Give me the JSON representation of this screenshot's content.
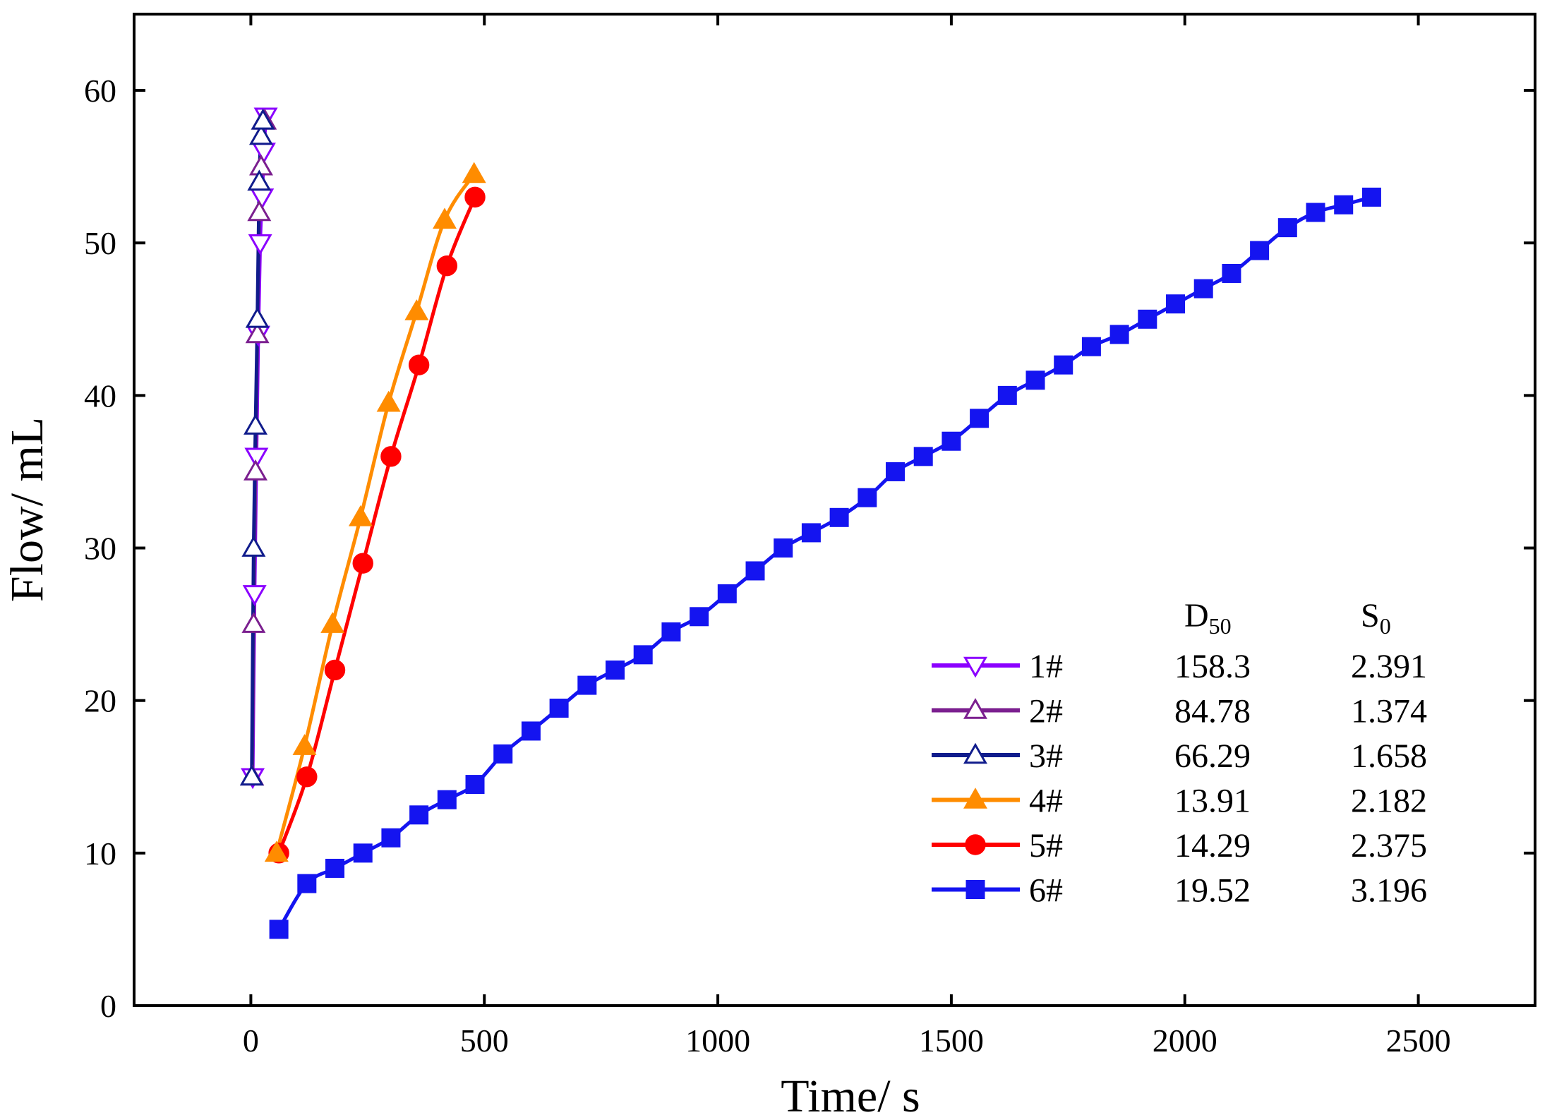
{
  "chart_data": {
    "type": "line",
    "title": "",
    "xlabel": "Time/ s",
    "ylabel": "Flow/ mL",
    "xlim": [
      -250,
      2750
    ],
    "ylim": [
      0,
      65
    ],
    "xticks": [
      0,
      500,
      1000,
      1500,
      2000,
      2500
    ],
    "yticks": [
      0,
      10,
      20,
      30,
      40,
      50,
      60
    ],
    "xtick_labels": [
      "0",
      "500",
      "1000",
      "1500",
      "2000",
      "2500"
    ],
    "ytick_labels": [
      "0",
      "10",
      "20",
      "30",
      "40",
      "50",
      "60"
    ],
    "grid": false,
    "legend": {
      "position": "bottom-right",
      "header": {
        "d50_main": "D",
        "d50_sub": "50",
        "s0_main": "S",
        "s0_sub": "0"
      }
    },
    "series": [
      {
        "name": "1#",
        "d50": "158.3",
        "s0": "2.391",
        "color": "#8B00FF",
        "marker": "triangle-down",
        "filled": false,
        "x": [
          4,
          8,
          12,
          16,
          20,
          24,
          28,
          32
        ],
        "y": [
          15,
          27,
          36,
          44,
          50,
          53,
          56,
          58.3
        ]
      },
      {
        "name": "2#",
        "d50": "84.78",
        "s0": "1.374",
        "color": "#7B1F8F",
        "marker": "triangle-up",
        "filled": false,
        "x": [
          3,
          6,
          10,
          14,
          18,
          22,
          26,
          30
        ],
        "y": [
          15,
          25,
          35,
          44,
          52,
          55,
          58,
          58
        ]
      },
      {
        "name": "3#",
        "d50": "66.29",
        "s0": "1.658",
        "color": "#101C8C",
        "marker": "triangle-up",
        "filled": false,
        "x": [
          2,
          6,
          10,
          14,
          18,
          22,
          26
        ],
        "y": [
          15,
          30,
          38,
          45,
          54,
          57,
          58
        ]
      },
      {
        "name": "4#",
        "d50": "13.91",
        "s0": "2.182",
        "color": "#FF8C00",
        "marker": "triangle-up",
        "filled": true,
        "x": [
          55,
          115,
          175,
          235,
          295,
          355,
          415,
          478
        ],
        "y": [
          10,
          17,
          25,
          32,
          39.5,
          45.5,
          51.5,
          54.5
        ]
      },
      {
        "name": "5#",
        "d50": "14.29",
        "s0": "2.375",
        "color": "#FF0000",
        "marker": "circle",
        "filled": true,
        "x": [
          60,
          120,
          180,
          240,
          300,
          360,
          420,
          480
        ],
        "y": [
          10,
          15,
          22,
          29,
          36,
          42,
          48.5,
          53
        ]
      },
      {
        "name": "6#",
        "d50": "19.52",
        "s0": "3.196",
        "color": "#1414F0",
        "marker": "square",
        "filled": true,
        "x": [
          60,
          120,
          180,
          240,
          300,
          360,
          420,
          480,
          540,
          600,
          660,
          720,
          780,
          840,
          900,
          960,
          1020,
          1080,
          1140,
          1200,
          1260,
          1320,
          1380,
          1440,
          1500,
          1560,
          1620,
          1680,
          1740,
          1800,
          1860,
          1920,
          1980,
          2040,
          2100,
          2160,
          2220,
          2280,
          2340,
          2400
        ],
        "y": [
          5,
          8,
          9,
          10,
          11,
          12.5,
          13.5,
          14.5,
          16.5,
          18,
          19.5,
          21,
          22,
          23,
          24.5,
          25.5,
          27,
          28.5,
          30,
          31,
          32,
          33.3,
          35,
          36,
          37,
          38.5,
          40,
          41,
          42,
          43.2,
          44,
          45,
          46,
          47,
          48,
          49.5,
          51,
          52,
          52.5,
          53
        ]
      }
    ]
  }
}
